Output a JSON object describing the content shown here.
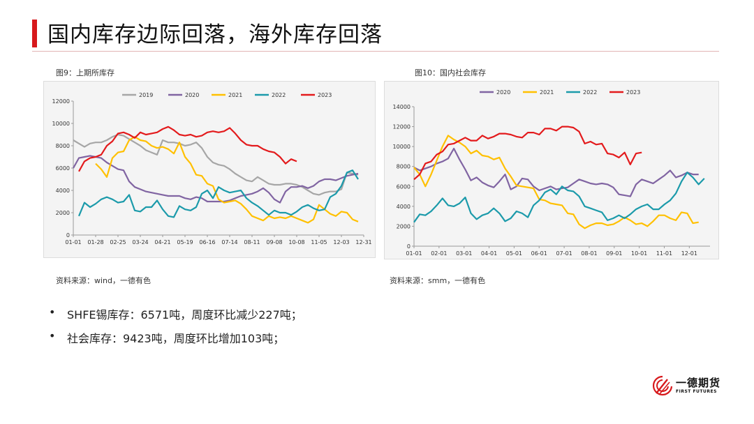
{
  "title": "国内库存边际回落，海外库存回落",
  "figures": {
    "left_caption": "图9：上期所库存",
    "right_caption": "图10：国内社会库存",
    "left_source": "资料来源：wind，一德有色",
    "right_source": "资料来源：smm，一德有色"
  },
  "bullets": [
    {
      "dot": "•",
      "text": "SHFE锡库存：6571吨，周度环比减少227吨；"
    },
    {
      "dot": "•",
      "text": "社会库存：9423吨，周度环比增加103吨；"
    }
  ],
  "logo": {
    "name": "一德期货",
    "sub": "FIRST FUTURES",
    "color": "#d7191c"
  },
  "chart_data": [
    {
      "type": "line",
      "title": "图9：上期所库存",
      "xlabel": "",
      "ylabel": "",
      "ylim": [
        0,
        12000
      ],
      "yticks": [
        0,
        2000,
        4000,
        6000,
        8000,
        10000,
        12000
      ],
      "xlim": [
        0,
        52
      ],
      "xtick_labels": [
        "01-01",
        "01-28",
        "02-25",
        "03-24",
        "04-21",
        "05-19",
        "06-16",
        "07-14",
        "08-11",
        "09-08",
        "10-08",
        "11-05",
        "12-03",
        "12-31"
      ],
      "legend_position": "top",
      "series": [
        {
          "name": "2019",
          "color": "#a6a6a6",
          "values": [
            8500,
            8200,
            7900,
            8200,
            8300,
            8300,
            8500,
            8800,
            9000,
            8900,
            8600,
            8300,
            8000,
            7600,
            7400,
            7200,
            8500,
            8300,
            8300,
            8200,
            8000,
            8100,
            8300,
            7800,
            7000,
            6500,
            6300,
            6200,
            5900,
            5500,
            5200,
            4900,
            4800,
            5200,
            4900,
            4600,
            4500,
            4500,
            4600,
            4600,
            4500,
            4300,
            4000,
            3700,
            3600,
            3800,
            3900,
            3900,
            4100,
            5600,
            5500,
            5400
          ]
        },
        {
          "name": "2020",
          "color": "#8064a2",
          "values": [
            6000,
            6900,
            7000,
            7100,
            7000,
            6900,
            6500,
            6200,
            5900,
            5800,
            4800,
            4300,
            4100,
            3900,
            3800,
            3700,
            3600,
            3500,
            3500,
            3500,
            3300,
            3200,
            3400,
            3300,
            3000,
            3000,
            3000,
            3000,
            3100,
            3300,
            3500,
            3600,
            3700,
            3900,
            4200,
            3800,
            3200,
            2900,
            3900,
            4300,
            4300,
            4400,
            4200,
            4400,
            4800,
            5000,
            5000,
            4900,
            5100,
            5300,
            5400,
            5500
          ]
        },
        {
          "name": "2021",
          "color": "#ffc000",
          "values": [
            null,
            null,
            null,
            null,
            6400,
            5900,
            5200,
            6900,
            7400,
            7500,
            8500,
            8800,
            8500,
            8400,
            8000,
            7800,
            7900,
            7700,
            7300,
            8300,
            7000,
            6400,
            5400,
            5300,
            4600,
            4400,
            3200,
            2900,
            3000,
            3100,
            2800,
            2300,
            1700,
            1500,
            1300,
            1700,
            1500,
            1600,
            1500,
            1700,
            1500,
            1300,
            1100,
            1400,
            2700,
            2300,
            1900,
            1700,
            2100,
            2000,
            1400,
            1200
          ]
        },
        {
          "name": "2022",
          "color": "#1b9aaa",
          "values": [
            null,
            1700,
            2900,
            2500,
            2800,
            3200,
            3400,
            3200,
            2900,
            3000,
            3600,
            2200,
            2100,
            2500,
            2500,
            3100,
            2300,
            1700,
            1600,
            2600,
            2300,
            2200,
            2500,
            3700,
            4000,
            3300,
            4300,
            4000,
            3800,
            3900,
            4000,
            3300,
            2900,
            2600,
            2200,
            1800,
            2200,
            2000,
            2000,
            1800,
            2100,
            2500,
            2700,
            2400,
            2200,
            2300,
            3400,
            3700,
            4400,
            5600,
            5800,
            5000
          ]
        },
        {
          "name": "2023",
          "color": "#e31a1c",
          "values": [
            null,
            5700,
            6600,
            6900,
            7000,
            7200,
            8000,
            8400,
            9100,
            9200,
            9000,
            8700,
            9200,
            9000,
            9100,
            9200,
            9500,
            9700,
            9400,
            9000,
            8900,
            9000,
            8800,
            8900,
            9200,
            9300,
            9200,
            9300,
            9600,
            9100,
            8500,
            8100,
            8000,
            8000,
            7700,
            7500,
            7400,
            7000,
            6400,
            6800,
            6600
          ]
        }
      ]
    },
    {
      "type": "line",
      "title": "图10：国内社会库存",
      "xlabel": "",
      "ylabel": "",
      "ylim": [
        0,
        14000
      ],
      "yticks": [
        0,
        2000,
        4000,
        6000,
        8000,
        10000,
        12000,
        14000
      ],
      "xlim": [
        0,
        52
      ],
      "xtick_labels": [
        "01-01",
        "02-01",
        "03-01",
        "04-01",
        "05-01",
        "06-01",
        "07-01",
        "08-01",
        "09-01",
        "10-01",
        "11-01",
        "12-01"
      ],
      "legend_position": "top",
      "series": [
        {
          "name": "2020",
          "color": "#8064a2",
          "values": [
            7900,
            7600,
            7800,
            8000,
            8300,
            8500,
            8800,
            9800,
            8700,
            7700,
            6600,
            6900,
            6400,
            6100,
            5900,
            6500,
            7200,
            5700,
            6000,
            6800,
            6700,
            6000,
            5600,
            5800,
            6000,
            5700,
            5800,
            5900,
            6300,
            6700,
            6500,
            6300,
            6200,
            6300,
            6200,
            5900,
            5200,
            5100,
            5000,
            6200,
            6700,
            6500,
            6300,
            6700,
            7100,
            7600,
            6900,
            7100,
            7400,
            7200,
            7200
          ]
        },
        {
          "name": "2021",
          "color": "#ffc000",
          "values": [
            7900,
            7200,
            6000,
            7200,
            8600,
            10000,
            11100,
            10700,
            10400,
            10000,
            9300,
            9600,
            9100,
            9000,
            8700,
            8900,
            7800,
            7000,
            6100,
            6000,
            5900,
            5800,
            4700,
            4600,
            4300,
            4200,
            4100,
            3300,
            3200,
            2200,
            1800,
            2100,
            2300,
            2300,
            2100,
            2200,
            2500,
            2900,
            2600,
            2200,
            2300,
            2000,
            2500,
            3100,
            3100,
            2800,
            2600,
            3400,
            3300,
            2300,
            2400
          ]
        },
        {
          "name": "2022",
          "color": "#1b9aaa",
          "values": [
            2400,
            3200,
            3100,
            3500,
            4100,
            4800,
            4100,
            4000,
            4300,
            4900,
            3300,
            2700,
            3100,
            3300,
            3800,
            3300,
            2500,
            2800,
            3500,
            3300,
            2900,
            4100,
            4600,
            5400,
            5700,
            5200,
            6000,
            5600,
            5500,
            5000,
            4000,
            3800,
            3600,
            3400,
            2600,
            2800,
            3100,
            2800,
            3200,
            3700,
            4000,
            4200,
            3700,
            3700,
            4200,
            4600,
            5300,
            6500,
            7400,
            6900,
            6200,
            6800
          ]
        },
        {
          "name": "2023",
          "color": "#e31a1c",
          "values": [
            6700,
            7200,
            8300,
            8500,
            9200,
            9500,
            10200,
            10300,
            10600,
            10900,
            10600,
            10600,
            11100,
            10800,
            11000,
            11300,
            11300,
            11200,
            11000,
            10900,
            11400,
            11400,
            11200,
            11800,
            11800,
            11600,
            12000,
            12000,
            11900,
            11500,
            10300,
            10500,
            10200,
            10300,
            9300,
            9200,
            8900,
            9400,
            8200,
            9300,
            9400
          ]
        }
      ]
    }
  ]
}
